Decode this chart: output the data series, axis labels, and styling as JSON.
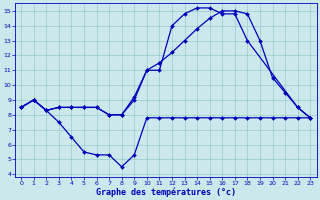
{
  "line1_x": [
    0,
    1,
    2,
    3,
    4,
    5,
    6,
    7,
    8,
    9,
    10,
    11,
    12,
    13,
    14,
    15,
    16,
    17,
    18,
    22,
    23
  ],
  "line1_y": [
    8.5,
    9.0,
    8.3,
    8.5,
    8.5,
    8.5,
    8.5,
    8.0,
    8.0,
    9.0,
    11.0,
    11.0,
    14.0,
    14.8,
    15.2,
    15.2,
    14.8,
    14.8,
    13.0,
    8.5,
    7.8
  ],
  "line2_x": [
    0,
    1,
    2,
    3,
    4,
    5,
    6,
    7,
    8,
    9,
    10,
    11,
    12,
    13,
    14,
    15,
    16,
    17,
    18,
    19,
    20,
    21,
    22,
    23
  ],
  "line2_y": [
    8.5,
    9.0,
    8.3,
    7.5,
    6.5,
    5.5,
    5.3,
    5.3,
    4.5,
    5.3,
    7.8,
    7.8,
    7.8,
    7.8,
    7.8,
    7.8,
    7.8,
    7.8,
    7.8,
    7.8,
    7.8,
    7.8,
    7.8,
    7.8
  ],
  "line3_x": [
    0,
    1,
    2,
    3,
    4,
    5,
    6,
    7,
    8,
    9,
    10,
    11,
    12,
    13,
    14,
    15,
    16,
    17,
    18,
    19,
    20,
    21,
    22,
    23
  ],
  "line3_y": [
    8.5,
    9.0,
    8.3,
    8.5,
    8.5,
    8.5,
    8.5,
    8.0,
    8.0,
    9.2,
    11.0,
    11.5,
    12.2,
    13.0,
    13.8,
    14.5,
    15.0,
    15.0,
    14.8,
    13.0,
    10.5,
    9.5,
    8.5,
    7.8
  ],
  "line_color": "#0000bb",
  "bg_color": "#cce8ec",
  "grid_color": "#99cccc",
  "xlabel": "Graphe des températures (°c)",
  "xlim_min": -0.5,
  "xlim_max": 23.5,
  "ylim_min": 3.8,
  "ylim_max": 15.5
}
